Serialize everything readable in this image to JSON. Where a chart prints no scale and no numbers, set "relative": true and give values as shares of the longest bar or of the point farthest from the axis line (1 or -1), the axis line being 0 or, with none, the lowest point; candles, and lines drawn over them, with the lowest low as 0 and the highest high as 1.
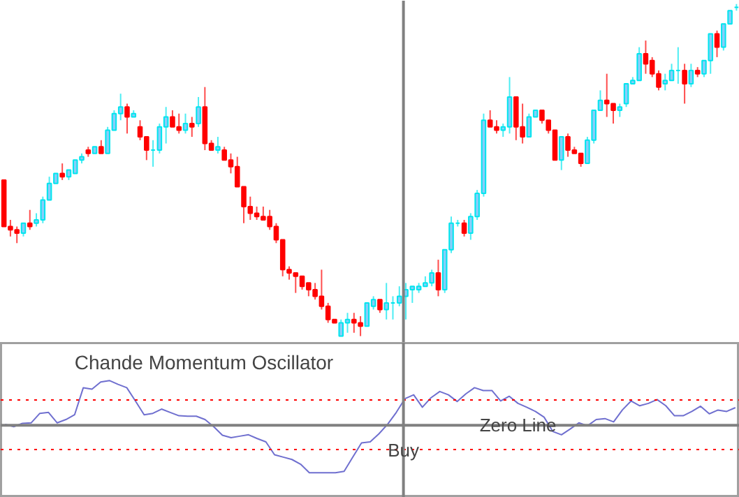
{
  "chart_data": [
    {
      "type": "candlestick",
      "relative": true,
      "tick_labels": false,
      "grid": false,
      "categories": [
        null,
        null,
        null,
        null,
        null,
        null,
        null,
        null,
        null,
        null,
        null,
        null,
        null,
        null,
        null,
        null,
        null,
        null,
        null,
        null,
        null,
        null,
        null,
        null,
        null,
        null,
        null,
        null,
        null,
        null,
        null,
        null,
        null,
        null,
        null,
        null,
        null,
        null,
        null,
        null,
        null,
        null,
        null,
        null,
        null,
        null,
        null,
        null,
        null,
        null,
        null,
        null,
        null,
        null,
        null,
        null,
        null,
        null,
        null,
        null,
        null,
        null,
        null,
        null,
        null,
        null,
        null,
        null,
        null,
        null,
        null,
        null,
        null,
        null,
        null,
        null,
        null,
        null,
        null,
        null,
        null,
        null,
        null,
        null,
        null,
        null,
        null,
        null,
        null,
        null,
        null,
        null,
        null,
        null,
        null,
        null,
        null,
        null,
        null,
        null,
        null,
        null,
        null,
        null,
        null,
        null,
        null,
        null,
        null,
        null,
        null,
        null,
        null,
        null
      ],
      "ohlc": [
        [
          0.47,
          0.47,
          0.33,
          0.33
        ],
        [
          0.33,
          0.35,
          0.3,
          0.32
        ],
        [
          0.32,
          0.33,
          0.28,
          0.31
        ],
        [
          0.31,
          0.34,
          0.3,
          0.34
        ],
        [
          0.34,
          0.38,
          0.32,
          0.33
        ],
        [
          0.34,
          0.37,
          0.33,
          0.35
        ],
        [
          0.35,
          0.42,
          0.34,
          0.41
        ],
        [
          0.41,
          0.48,
          0.41,
          0.46
        ],
        [
          0.46,
          0.49,
          0.46,
          0.49
        ],
        [
          0.49,
          0.52,
          0.47,
          0.48
        ],
        [
          0.48,
          0.5,
          0.47,
          0.5
        ],
        [
          0.49,
          0.53,
          0.49,
          0.53
        ],
        [
          0.53,
          0.55,
          0.52,
          0.54
        ],
        [
          0.56,
          0.57,
          0.54,
          0.55
        ],
        [
          0.55,
          0.57,
          0.55,
          0.57
        ],
        [
          0.57,
          0.59,
          0.55,
          0.55
        ],
        [
          0.55,
          0.63,
          0.55,
          0.62
        ],
        [
          0.62,
          0.68,
          0.62,
          0.67
        ],
        [
          0.67,
          0.73,
          0.65,
          0.69
        ],
        [
          0.69,
          0.7,
          0.61,
          0.66
        ],
        [
          0.66,
          0.68,
          0.66,
          0.67
        ],
        [
          0.63,
          0.65,
          0.59,
          0.6
        ],
        [
          0.6,
          0.6,
          0.53,
          0.56
        ],
        [
          0.56,
          0.59,
          0.51,
          0.56
        ],
        [
          0.56,
          0.64,
          0.55,
          0.63
        ],
        [
          0.63,
          0.69,
          0.58,
          0.66
        ],
        [
          0.66,
          0.68,
          0.63,
          0.63
        ],
        [
          0.63,
          0.67,
          0.61,
          0.62
        ],
        [
          0.62,
          0.67,
          0.61,
          0.64
        ],
        [
          0.64,
          0.66,
          0.6,
          0.63
        ],
        [
          0.64,
          0.72,
          0.63,
          0.69
        ],
        [
          0.69,
          0.75,
          0.56,
          0.58
        ],
        [
          0.58,
          0.59,
          0.56,
          0.56
        ],
        [
          0.56,
          0.6,
          0.55,
          0.57
        ],
        [
          0.56,
          0.57,
          0.53,
          0.53
        ],
        [
          0.53,
          0.55,
          0.49,
          0.51
        ],
        [
          0.51,
          0.54,
          0.45,
          0.45
        ],
        [
          0.45,
          0.45,
          0.34,
          0.39
        ],
        [
          0.39,
          0.42,
          0.35,
          0.37
        ],
        [
          0.37,
          0.39,
          0.35,
          0.36
        ],
        [
          0.36,
          0.39,
          0.35,
          0.35
        ],
        [
          0.36,
          0.38,
          0.32,
          0.33
        ],
        [
          0.33,
          0.34,
          0.28,
          0.29
        ],
        [
          0.29,
          0.29,
          0.18,
          0.2
        ],
        [
          0.2,
          0.21,
          0.17,
          0.19
        ],
        [
          0.19,
          0.19,
          0.13,
          0.18
        ],
        [
          0.18,
          0.18,
          0.14,
          0.15
        ],
        [
          0.16,
          0.16,
          0.12,
          0.14
        ],
        [
          0.14,
          0.16,
          0.11,
          0.12
        ],
        [
          0.12,
          0.2,
          0.08,
          0.09
        ],
        [
          0.09,
          0.1,
          0.04,
          0.05
        ],
        [
          0.05,
          0.05,
          0.04,
          0.04
        ],
        [
          0.0,
          0.05,
          0.0,
          0.04
        ],
        [
          0.04,
          0.07,
          0.01,
          0.05
        ],
        [
          0.05,
          0.07,
          0.01,
          0.04
        ],
        [
          0.04,
          0.06,
          0.0,
          0.03
        ],
        [
          0.03,
          0.1,
          0.03,
          0.1
        ],
        [
          0.09,
          0.12,
          0.08,
          0.11
        ],
        [
          0.11,
          0.11,
          0.07,
          0.08
        ],
        [
          0.08,
          0.16,
          0.05,
          0.1
        ],
        [
          0.1,
          0.12,
          0.05,
          0.1
        ],
        [
          0.1,
          0.15,
          0.09,
          0.12
        ],
        [
          0.12,
          0.16,
          0.05,
          0.14
        ],
        [
          0.14,
          0.15,
          0.1,
          0.15
        ],
        [
          0.14,
          0.16,
          0.13,
          0.15
        ],
        [
          0.15,
          0.18,
          0.15,
          0.16
        ],
        [
          0.16,
          0.2,
          0.15,
          0.19
        ],
        [
          0.19,
          0.23,
          0.12,
          0.14
        ],
        [
          0.14,
          0.26,
          0.13,
          0.26
        ],
        [
          0.26,
          0.36,
          0.25,
          0.34
        ],
        [
          0.34,
          0.35,
          0.33,
          0.34
        ],
        [
          0.34,
          0.35,
          0.3,
          0.31
        ],
        [
          0.31,
          0.37,
          0.29,
          0.36
        ],
        [
          0.36,
          0.44,
          0.35,
          0.43
        ],
        [
          0.43,
          0.67,
          0.42,
          0.65
        ],
        [
          0.65,
          0.68,
          0.63,
          0.63
        ],
        [
          0.63,
          0.65,
          0.61,
          0.62
        ],
        [
          0.62,
          0.64,
          0.6,
          0.63
        ],
        [
          0.63,
          0.78,
          0.61,
          0.72
        ],
        [
          0.72,
          0.72,
          0.59,
          0.63
        ],
        [
          0.63,
          0.7,
          0.58,
          0.6
        ],
        [
          0.6,
          0.67,
          0.6,
          0.66
        ],
        [
          0.66,
          0.68,
          0.66,
          0.68
        ],
        [
          0.68,
          0.68,
          0.64,
          0.65
        ],
        [
          0.65,
          0.65,
          0.61,
          0.62
        ],
        [
          0.62,
          0.62,
          0.53,
          0.53
        ],
        [
          0.53,
          0.6,
          0.5,
          0.6
        ],
        [
          0.6,
          0.61,
          0.54,
          0.56
        ],
        [
          0.56,
          0.57,
          0.55,
          0.55
        ],
        [
          0.55,
          0.55,
          0.51,
          0.52
        ],
        [
          0.52,
          0.6,
          0.52,
          0.59
        ],
        [
          0.59,
          0.68,
          0.58,
          0.68
        ],
        [
          0.68,
          0.74,
          0.68,
          0.71
        ],
        [
          0.71,
          0.79,
          0.66,
          0.7
        ],
        [
          0.7,
          0.7,
          0.64,
          0.68
        ],
        [
          0.68,
          0.7,
          0.66,
          0.69
        ],
        [
          0.7,
          0.76,
          0.69,
          0.76
        ],
        [
          0.76,
          0.78,
          0.76,
          0.77
        ],
        [
          0.77,
          0.87,
          0.77,
          0.85
        ],
        [
          0.85,
          0.89,
          0.79,
          0.82
        ],
        [
          0.83,
          0.84,
          0.78,
          0.79
        ],
        [
          0.79,
          0.8,
          0.74,
          0.75
        ],
        [
          0.76,
          0.79,
          0.74,
          0.77
        ],
        [
          0.77,
          0.82,
          0.77,
          0.8
        ],
        [
          0.8,
          0.87,
          0.76,
          0.8
        ],
        [
          0.8,
          0.82,
          0.7,
          0.76
        ],
        [
          0.76,
          0.82,
          0.75,
          0.8
        ],
        [
          0.8,
          0.81,
          0.78,
          0.79
        ],
        [
          0.79,
          0.83,
          0.78,
          0.83
        ],
        [
          0.83,
          0.91,
          0.79,
          0.91
        ],
        [
          0.91,
          0.92,
          0.84,
          0.87
        ],
        [
          0.87,
          0.94,
          0.86,
          0.94
        ],
        [
          0.94,
          0.98,
          0.94,
          0.98
        ],
        [
          0.99,
          1.0,
          0.98,
          0.99
        ]
      ]
    },
    {
      "type": "line",
      "relative": true,
      "tick_labels": false,
      "grid": false,
      "marker": "none",
      "line_style": "solid",
      "title": "Chande Momentum Oscillator",
      "categories": [
        null,
        null,
        null,
        null,
        null,
        null,
        null,
        null,
        null,
        null,
        null,
        null,
        null,
        null,
        null,
        null,
        null,
        null,
        null,
        null,
        null,
        null,
        null,
        null,
        null,
        null,
        null,
        null,
        null,
        null,
        null,
        null,
        null,
        null,
        null,
        null,
        null,
        null,
        null,
        null,
        null,
        null,
        null,
        null,
        null,
        null,
        null,
        null,
        null,
        null,
        null,
        null,
        null,
        null,
        null,
        null,
        null,
        null,
        null,
        null,
        null,
        null,
        null,
        null,
        null,
        null,
        null,
        null,
        null,
        null,
        null,
        null,
        null,
        null,
        null,
        null,
        null,
        null,
        null,
        null,
        null,
        null,
        null,
        null,
        null
      ],
      "series": [
        {
          "color": "#6f6fcf",
          "values": [
            0.02,
            -0.03,
            0.04,
            0.05,
            0.25,
            0.27,
            0.05,
            0.12,
            0.22,
            0.79,
            0.76,
            0.91,
            0.94,
            0.86,
            0.79,
            0.51,
            0.22,
            0.25,
            0.34,
            0.27,
            0.2,
            0.19,
            0.19,
            0.12,
            -0.03,
            -0.21,
            -0.26,
            -0.23,
            -0.2,
            -0.28,
            -0.35,
            -0.62,
            -0.67,
            -0.72,
            -0.82,
            -1.0,
            -1.0,
            -1.0,
            -1.0,
            -0.97,
            -0.67,
            -0.37,
            -0.35,
            -0.18,
            0.02,
            0.27,
            0.56,
            0.64,
            0.38,
            0.58,
            0.71,
            0.64,
            0.5,
            0.66,
            0.79,
            0.73,
            0.73,
            0.51,
            0.61,
            0.46,
            0.38,
            0.29,
            0.17,
            -0.13,
            -0.2,
            -0.08,
            0.05,
            -0.01,
            0.12,
            0.14,
            0.07,
            0.32,
            0.51,
            0.41,
            0.46,
            0.54,
            0.41,
            0.2,
            0.2,
            0.29,
            0.4,
            0.24,
            0.32,
            0.29,
            0.37
          ]
        }
      ],
      "ref_lines": [
        {
          "axis": "y",
          "value": 0,
          "label": "Zero Line",
          "color": "#808080",
          "line_style": "solid"
        },
        {
          "axis": "y",
          "value": 0.53,
          "color": "#ff0000",
          "line_style": "dotted"
        },
        {
          "axis": "y",
          "value": -0.51,
          "color": "#ff0000",
          "line_style": "dotted"
        }
      ],
      "annotations": [
        "Buy"
      ]
    }
  ]
}
